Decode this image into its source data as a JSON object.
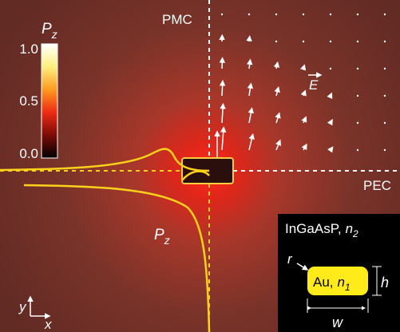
{
  "colorbar": {
    "symbol": "P",
    "subscript": "z",
    "ticks": [
      "1.0",
      "0.5",
      "0.0"
    ]
  },
  "boundaries": {
    "top": "PMC",
    "right": "PEC"
  },
  "field_label": "E",
  "curve_label": {
    "symbol": "P",
    "subscript": "z"
  },
  "axes": {
    "y": "y",
    "x": "x"
  },
  "inset": {
    "medium": "InGaAsP,",
    "medium_symbol": "n",
    "medium_sub": "2",
    "corner": "r",
    "particle": "Au,",
    "particle_symbol": "n",
    "particle_sub": "1",
    "height": "h",
    "width": "w"
  }
}
